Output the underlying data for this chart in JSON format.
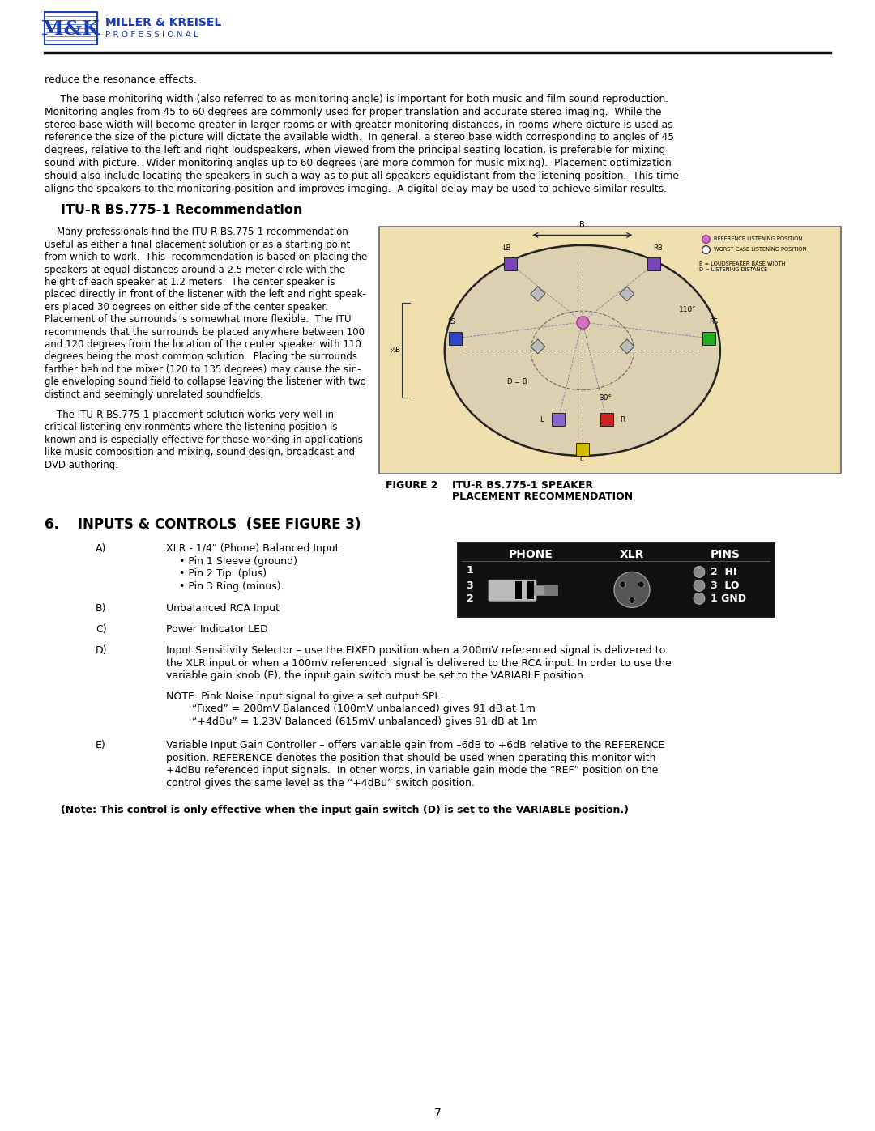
{
  "bg_color": "#ffffff",
  "logo_color": "#1a3db5",
  "page_number": "7",
  "reduce_text": "reduce the resonance effects.",
  "para1_lines": [
    "     The base monitoring width (also referred to as monitoring angle) is important for both music and film sound reproduction.",
    "Monitoring angles from 45 to 60 degrees are commonly used for proper translation and accurate stereo imaging.  While the",
    "stereo base width will become greater in larger rooms or with greater monitoring distances, in rooms where picture is used as",
    "reference the size of the picture will dictate the available width.  In general. a stereo base width corresponding to angles of 45",
    "degrees, relative to the left and right loudspeakers, when viewed from the principal seating location, is preferable for mixing",
    "sound with picture.  Wider monitoring angles up to 60 degrees (are more common for music mixing).  Placement optimization",
    "should also include locating the speakers in such a way as to put all speakers equidistant from the listening position.  This time-",
    "aligns the speakers to the monitoring position and improves imaging.  A digital delay may be used to achieve similar results."
  ],
  "section_itu": "ITU-R BS.775-1 Recommendation",
  "para2_lines": [
    "    Many professionals find the ITU-R BS.775-1 recommendation",
    "useful as either a final placement solution or as a starting point",
    "from which to work.  This  recommendation is based on placing the",
    "speakers at equal distances around a 2.5 meter circle with the",
    "height of each speaker at 1.2 meters.  The center speaker is",
    "placed directly in front of the listener with the left and right speak-",
    "ers placed 30 degrees on either side of the center speaker.",
    "Placement of the surrounds is somewhat more flexible.  The ITU",
    "recommends that the surrounds be placed anywhere between 100",
    "and 120 degrees from the location of the center speaker with 110",
    "degrees being the most common solution.  Placing the surrounds",
    "farther behind the mixer (120 to 135 degrees) may cause the sin-",
    "gle enveloping sound field to collapse leaving the listener with two",
    "distinct and seemingly unrelated soundfields."
  ],
  "para3_lines": [
    "    The ITU-R BS.775-1 placement solution works very well in",
    "critical listening environments where the listening position is",
    "known and is especially effective for those working in applications",
    "like music composition and mixing, sound design, broadcast and",
    "DVD authoring."
  ],
  "figure2_label": "FIGURE 2",
  "figure2_caption1": "ITU-R BS.775-1 SPEAKER",
  "figure2_caption2": "PLACEMENT RECOMMENDATION",
  "section6": "6.    INPUTS & CONTROLS  (SEE FIGURE 3)",
  "item_a_label": "A)",
  "item_a_lines": [
    "XLR - 1/4\" (Phone) Balanced Input",
    "    • Pin 1 Sleeve (ground)",
    "    • Pin 2 Tip  (plus)",
    "    • Pin 3 Ring (minus)."
  ],
  "item_b_label": "B)",
  "item_b_text": "Unbalanced RCA Input",
  "item_c_label": "C)",
  "item_c_text": "Power Indicator LED",
  "item_d_label": "D)",
  "item_d_lines": [
    "Input Sensitivity Selector – use the FIXED position when a 200mV referenced signal is delivered to",
    "the XLR input or when a 100mV referenced  signal is delivered to the RCA input. In order to use the",
    "variable gain knob (E), the input gain switch must be set to the VARIABLE position."
  ],
  "item_d_note_lines": [
    "NOTE: Pink Noise input signal to give a set output SPL:",
    "        “Fixed” = 200mV Balanced (100mV unbalanced) gives 91 dB at 1m",
    "        “+4dBu” = 1.23V Balanced (615mV unbalanced) gives 91 dB at 1m"
  ],
  "item_e_label": "E)",
  "item_e_lines": [
    "Variable Input Gain Controller – offers variable gain from –6dB to +6dB relative to the REFERENCE",
    "position. REFERENCE denotes the position that should be used when operating this monitor with",
    "+4dBu referenced input signals.  In other words, in variable gain mode the “REF” position on the",
    "control gives the same level as the “+4dBu” switch position."
  ],
  "note_bold": "(Note: This control is only effective when the input gain switch (D) is set to the VARIABLE position.)"
}
